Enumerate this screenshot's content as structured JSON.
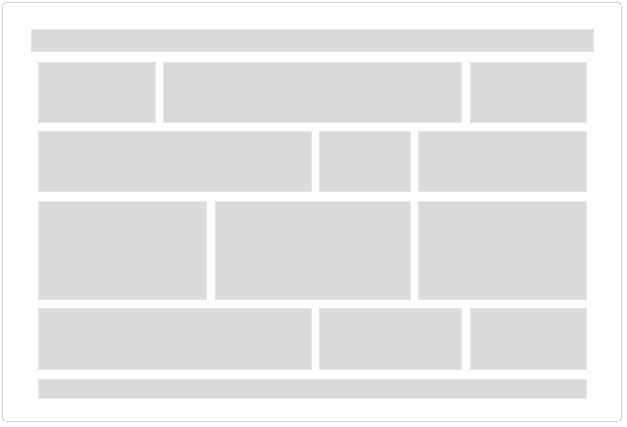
{
  "wireframe": {
    "header_bar": "",
    "footer_bar": "",
    "rows": [
      {
        "tiles": [
          "",
          "",
          ""
        ]
      },
      {
        "tiles": [
          "",
          "",
          ""
        ]
      },
      {
        "tiles": [
          "",
          "",
          ""
        ]
      },
      {
        "tiles": [
          "",
          "",
          ""
        ]
      }
    ]
  },
  "colors": {
    "frame_border": "#cfcfcf",
    "placeholder_fill": "#dadada",
    "background": "#ffffff"
  }
}
